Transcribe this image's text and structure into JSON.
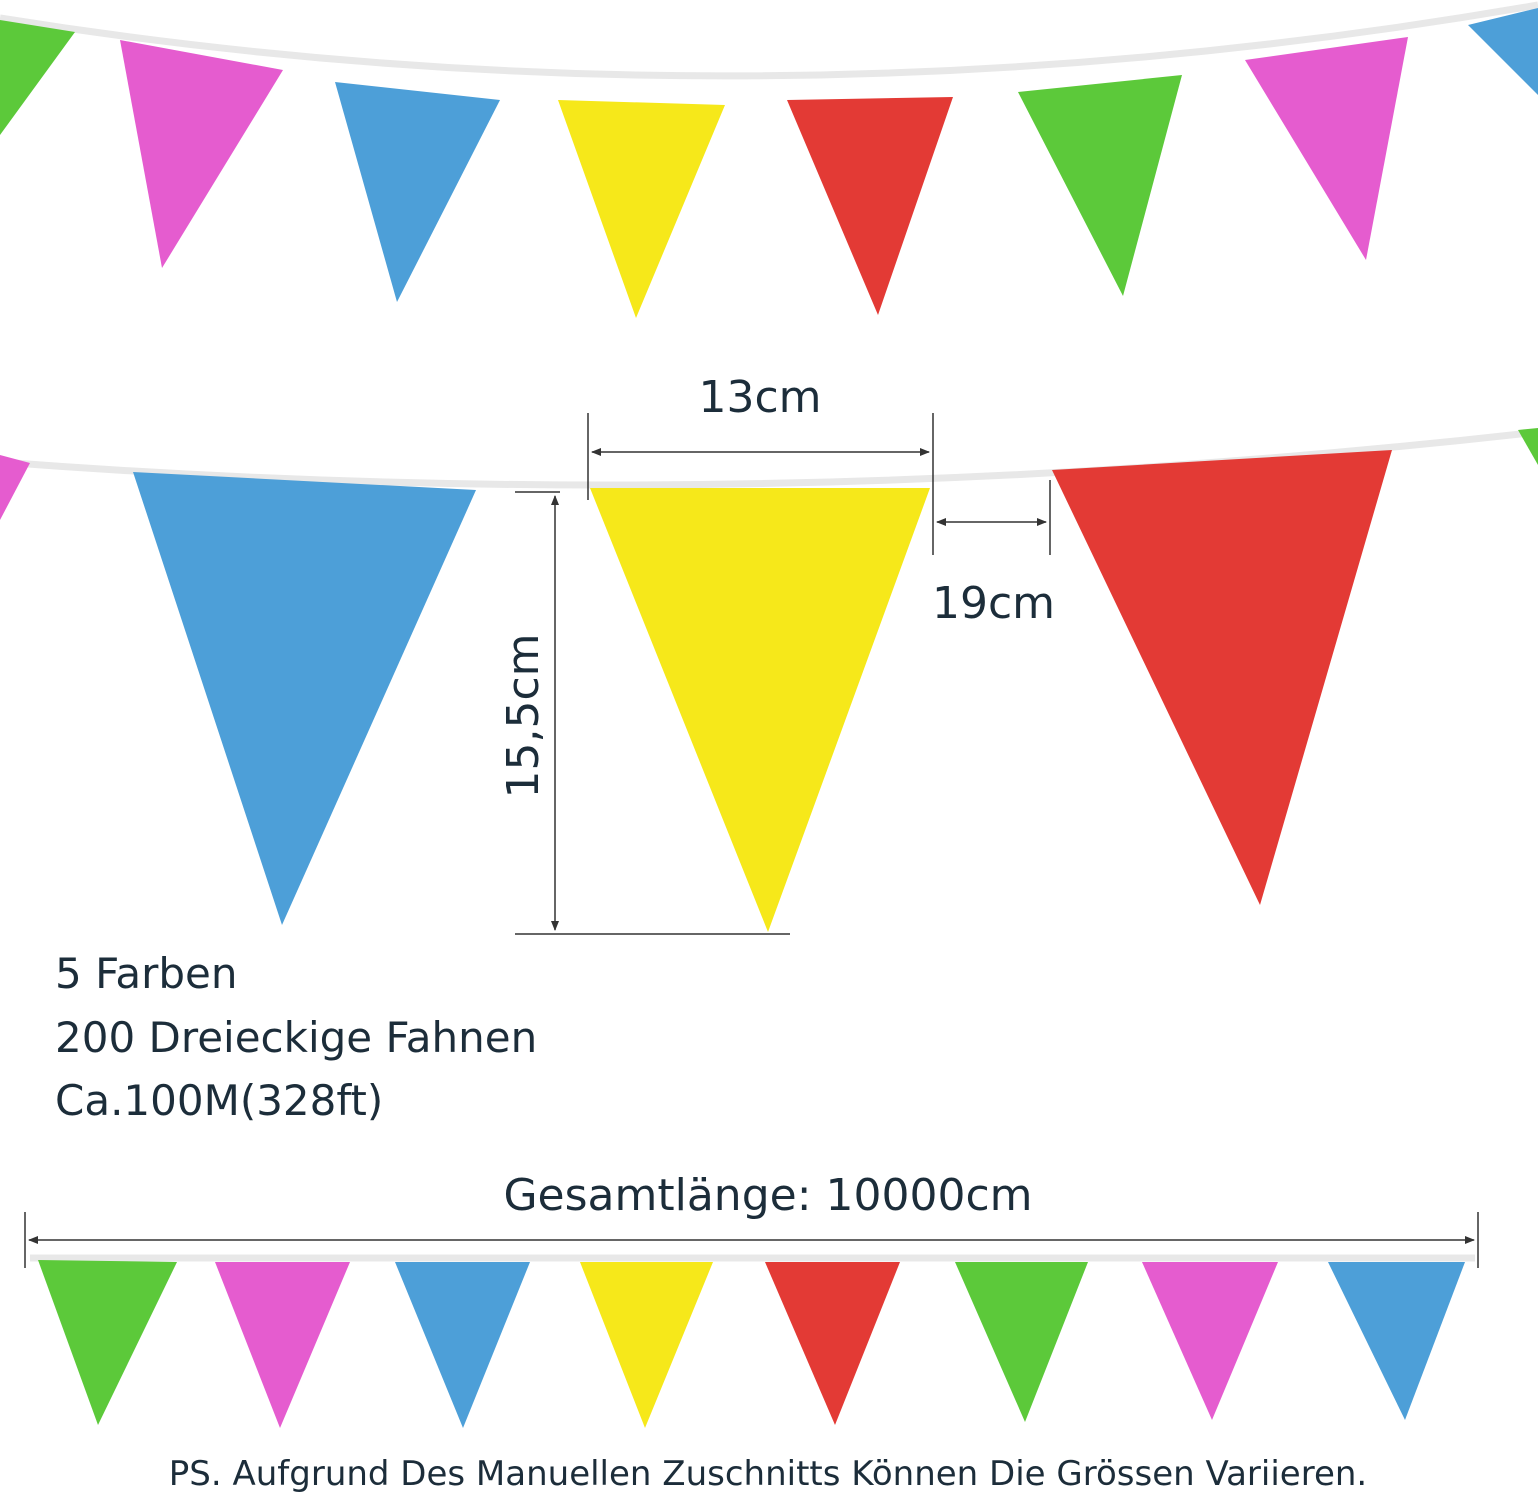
{
  "dimensions": {
    "width": "13cm",
    "gap": "19cm",
    "height": "15,5cm"
  },
  "info": [
    "5 Farben",
    "200 Dreieckige Fahnen",
    "Ca.100M(328ft)"
  ],
  "total_length": "Gesamtlänge: 10000cm",
  "note": "PS. Aufgrund Des Manuellen Zuschnitts Können Die Grössen Variieren."
}
